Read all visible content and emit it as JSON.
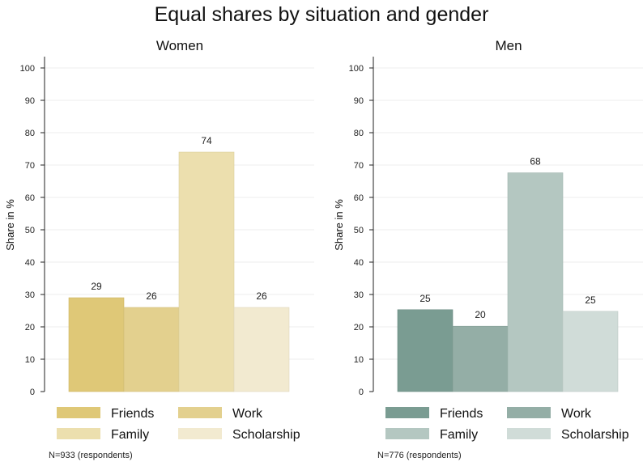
{
  "title": "Equal shares by situation and gender",
  "chart_data": [
    {
      "type": "bar",
      "subtitle": "Women",
      "ylabel": "Share in %",
      "ylim": [
        0,
        100
      ],
      "yticks": [
        0,
        10,
        20,
        30,
        40,
        50,
        60,
        70,
        80,
        90,
        100
      ],
      "grid": true,
      "legend_position": "bottom",
      "categories": [
        "Friends",
        "Work",
        "Family",
        "Scholarship"
      ],
      "values": [
        29,
        26,
        74,
        26
      ],
      "value_labels": [
        "29",
        "26",
        "74",
        "26"
      ],
      "colors": [
        "#dfc877",
        "#e3d08e",
        "#ecdfae",
        "#f2ead0"
      ],
      "note": "N=933 (respondents)"
    },
    {
      "type": "bar",
      "subtitle": "Men",
      "ylabel": "Share in %",
      "ylim": [
        0,
        100
      ],
      "yticks": [
        0,
        10,
        20,
        30,
        40,
        50,
        60,
        70,
        80,
        90,
        100
      ],
      "grid": true,
      "legend_position": "bottom",
      "categories": [
        "Friends",
        "Work",
        "Family",
        "Scholarship"
      ],
      "values": [
        25.3,
        20.2,
        67.6,
        24.8
      ],
      "value_labels": [
        "25",
        "20",
        "68",
        "25"
      ],
      "colors": [
        "#7a9c92",
        "#94aea6",
        "#b4c7c1",
        "#d0dcd8"
      ],
      "note": "N=776 (respondents)"
    }
  ]
}
